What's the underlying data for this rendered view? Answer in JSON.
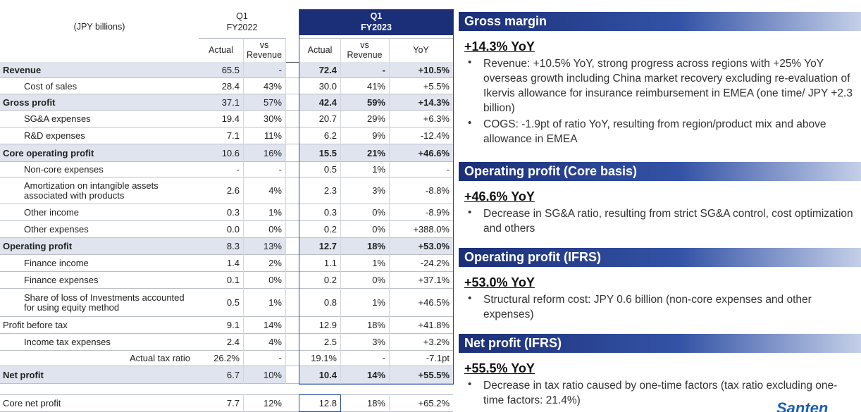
{
  "table": {
    "unit_label": "(JPY billions)",
    "groups": [
      [
        "Q1",
        "FY2022"
      ],
      [
        "Q1",
        "FY2023"
      ]
    ],
    "columns": [
      "Actual",
      "vs Revenue",
      "Actual",
      "vs Revenue",
      "YoY"
    ],
    "rows": [
      {
        "label": "Revenue",
        "cells": [
          "65.5",
          "-",
          "72.4",
          "-",
          "+10.5%"
        ]
      },
      {
        "label": "Cost of sales",
        "cells": [
          "28.4",
          "43%",
          "30.0",
          "41%",
          "+5.5%"
        ]
      },
      {
        "label": "Gross profit",
        "cells": [
          "37.1",
          "57%",
          "42.4",
          "59%",
          "+14.3%"
        ]
      },
      {
        "label": "SG&A expenses",
        "cells": [
          "19.4",
          "30%",
          "20.7",
          "29%",
          "+6.3%"
        ]
      },
      {
        "label": "R&D expenses",
        "cells": [
          "7.1",
          "11%",
          "6.2",
          "9%",
          "-12.4%"
        ]
      },
      {
        "label": "Core operating profit",
        "cells": [
          "10.6",
          "16%",
          "15.5",
          "21%",
          "+46.6%"
        ]
      },
      {
        "label": "Non-core expenses",
        "cells": [
          "-",
          "-",
          "0.5",
          "1%",
          "-"
        ]
      },
      {
        "label": "Amortization on intangible assets associated with products",
        "cells": [
          "2.6",
          "4%",
          "2.3",
          "3%",
          "-8.8%"
        ]
      },
      {
        "label": "Other income",
        "cells": [
          "0.3",
          "1%",
          "0.3",
          "0%",
          "-8.9%"
        ]
      },
      {
        "label": "Other expenses",
        "cells": [
          "0.0",
          "0%",
          "0.2",
          "0%",
          "+388.0%"
        ]
      },
      {
        "label": "Operating profit",
        "cells": [
          "8.3",
          "13%",
          "12.7",
          "18%",
          "+53.0%"
        ]
      },
      {
        "label": "Finance income",
        "cells": [
          "1.4",
          "2%",
          "1.1",
          "1%",
          "-24.2%"
        ]
      },
      {
        "label": "Finance expenses",
        "cells": [
          "0.1",
          "0%",
          "0.2",
          "0%",
          "+37.1%"
        ]
      },
      {
        "label": "Share of loss of Investments accounted for using equity method",
        "cells": [
          "0.5",
          "1%",
          "0.8",
          "1%",
          "+46.5%"
        ]
      },
      {
        "label": "Profit before tax",
        "cells": [
          "9.1",
          "14%",
          "12.9",
          "18%",
          "+41.8%"
        ]
      },
      {
        "label": "Income tax expenses",
        "cells": [
          "2.4",
          "4%",
          "2.5",
          "3%",
          "+3.2%"
        ]
      },
      {
        "label": "Actual tax ratio",
        "cells": [
          "26.2%",
          "-",
          "19.1%",
          "-",
          "-7.1pt"
        ]
      },
      {
        "label": "Net profit",
        "cells": [
          "6.7",
          "10%",
          "10.4",
          "14%",
          "+55.5%"
        ]
      },
      {
        "label": "Core net profit",
        "cells": [
          "7.7",
          "12%",
          "12.8",
          "18%",
          "+65.2%"
        ]
      }
    ]
  },
  "sections": [
    {
      "title": "Gross margin",
      "headline": "+14.3% YoY",
      "bullets": [
        "Revenue: +10.5% YoY, strong progress across regions with +25% YoY overseas growth including China market recovery excluding re-evaluation of Ikervis allowance for insurance reimbursement in EMEA (one time/ JPY +2.3 billion)",
        "COGS: -1.9pt of ratio YoY, resulting from region/product mix and above allowance in EMEA"
      ]
    },
    {
      "title": "Operating profit (Core basis)",
      "headline": "+46.6% YoY",
      "bullets": [
        "Decrease in SG&A ratio, resulting from strict SG&A control, cost optimization and others"
      ]
    },
    {
      "title": "Operating profit (IFRS)",
      "headline": "+53.0% YoY",
      "bullets": [
        "Structural reform cost: JPY 0.6 billion (non-core expenses and other expenses)"
      ]
    },
    {
      "title": "Net profit (IFRS)",
      "headline": "+55.5% YoY",
      "bullets": [
        "Decrease in tax ratio caused by one-time factors (tax ratio excluding one-time factors: 21.4%)"
      ]
    }
  ],
  "logo": "Santen"
}
